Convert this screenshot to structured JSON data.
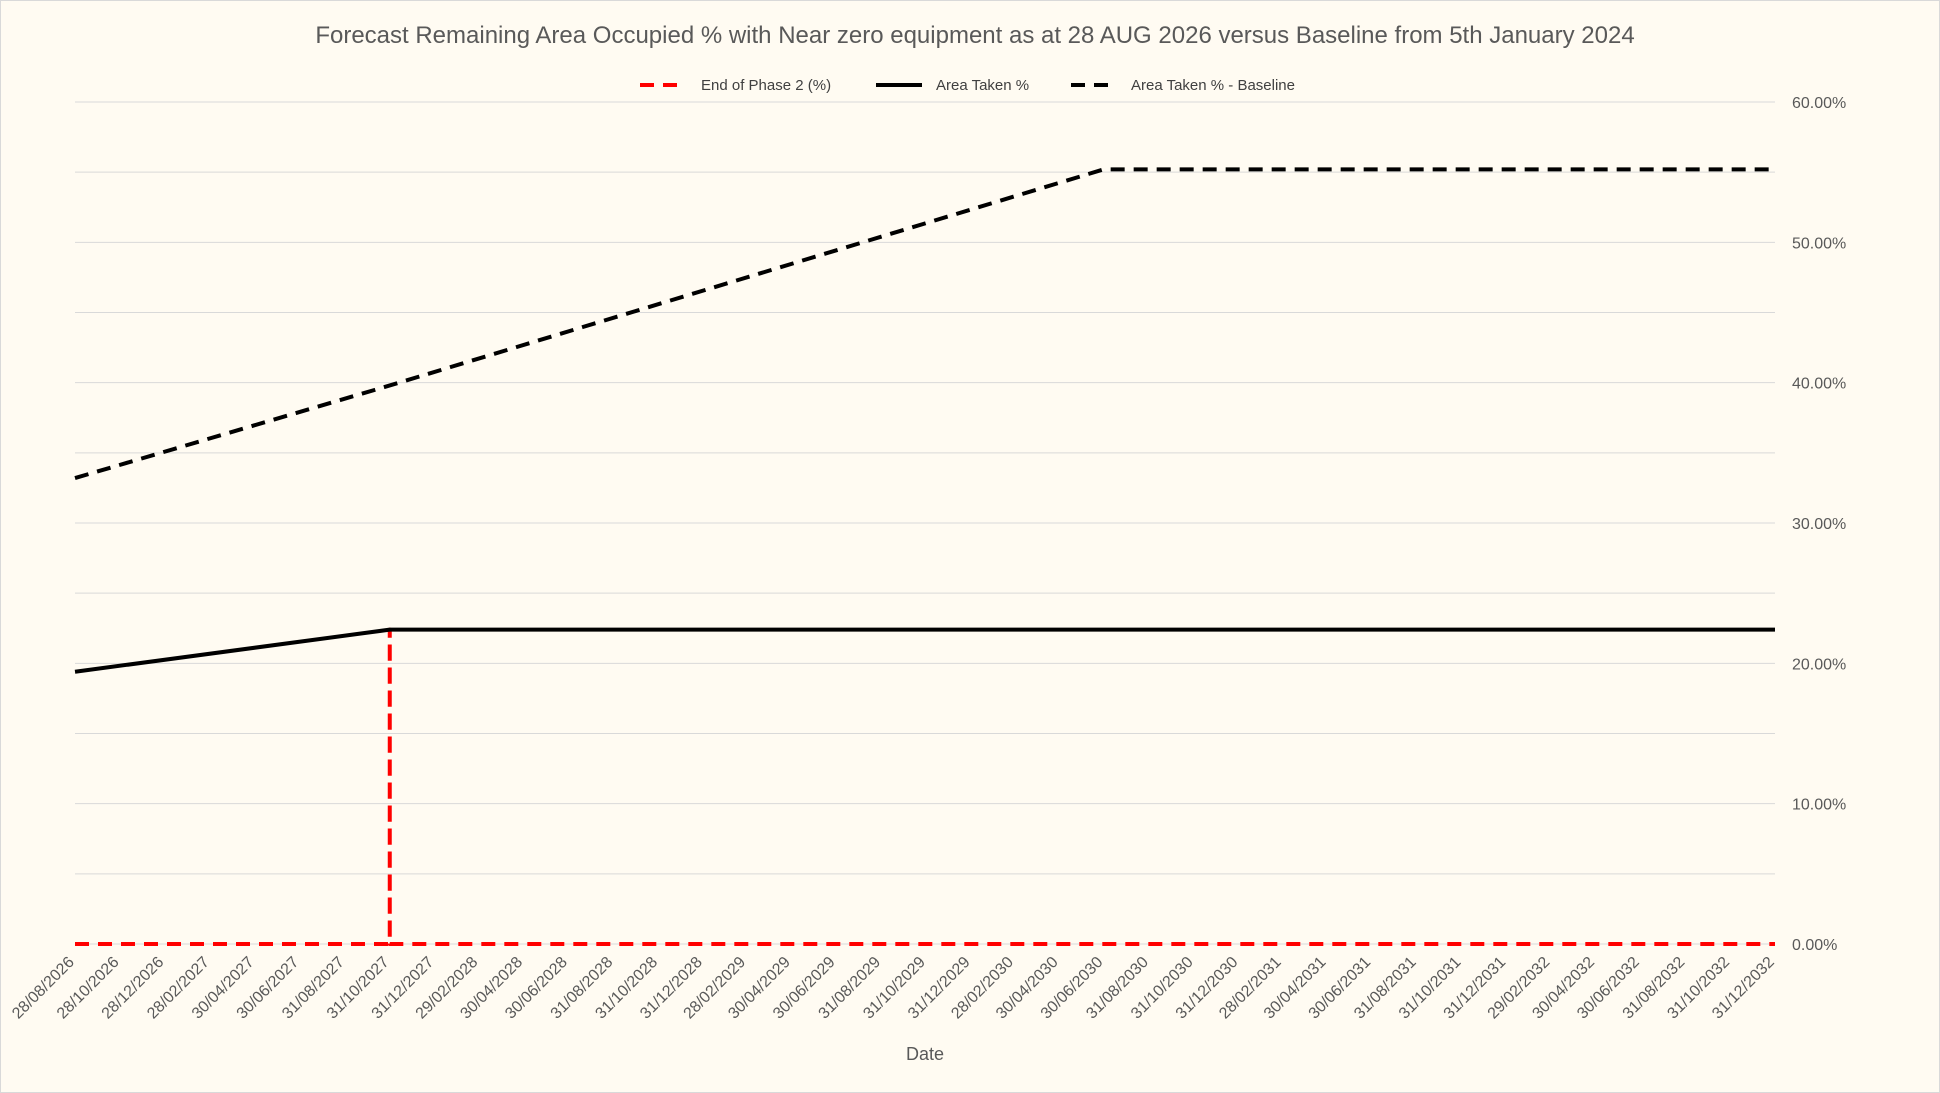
{
  "chart_data": {
    "type": "line",
    "title": "Forecast Remaining Area Occupied % with Near zero equipment as at 28 AUG 2026 versus Baseline from 5th January 2024",
    "xlabel": "Date",
    "ylabel": "",
    "x_tick_labels": [
      "28/08/2026",
      "28/10/2026",
      "28/12/2026",
      "28/02/2027",
      "30/04/2027",
      "30/06/2027",
      "31/08/2027",
      "31/10/2027",
      "31/12/2027",
      "29/02/2028",
      "30/04/2028",
      "30/06/2028",
      "31/08/2028",
      "31/10/2028",
      "31/12/2028",
      "28/02/2029",
      "30/04/2029",
      "30/06/2029",
      "31/08/2029",
      "31/10/2029",
      "31/12/2029",
      "28/02/2030",
      "30/04/2030",
      "30/06/2030",
      "31/08/2030",
      "31/10/2030",
      "31/12/2030",
      "28/02/2031",
      "30/04/2031",
      "30/06/2031",
      "31/08/2031",
      "31/10/2031",
      "31/12/2031",
      "29/02/2032",
      "30/04/2032",
      "30/06/2032",
      "31/08/2032",
      "31/10/2032",
      "31/12/2032"
    ],
    "y_tick_labels": [
      "0.00%",
      "10.00%",
      "20.00%",
      "30.00%",
      "40.00%",
      "50.00%",
      "60.00%"
    ],
    "ylim": [
      0,
      60
    ],
    "y_axis_position": "right",
    "grid": "horizontal",
    "legend_position": "top",
    "series": [
      {
        "name": "End of Phase 2 (%)",
        "color": "#ff0000",
        "style": "dashed",
        "points": [
          [
            "28/08/2026",
            0
          ],
          [
            "31/10/2027",
            0
          ],
          [
            "31/10/2027",
            22.4
          ],
          [
            "31/10/2027",
            0
          ],
          [
            "31/12/2032",
            0
          ]
        ]
      },
      {
        "name": "Area Taken %",
        "color": "#000000",
        "style": "solid",
        "points": [
          [
            "28/08/2026",
            19.4
          ],
          [
            "31/10/2027",
            22.4
          ],
          [
            "31/12/2032",
            22.4
          ]
        ]
      },
      {
        "name": "Area Taken % - Baseline",
        "color": "#000000",
        "style": "dashed",
        "points": [
          [
            "28/08/2026",
            33.2
          ],
          [
            "31/10/2027",
            39.8
          ],
          [
            "30/06/2030",
            55.2
          ],
          [
            "31/12/2032",
            55.2
          ]
        ]
      }
    ]
  }
}
